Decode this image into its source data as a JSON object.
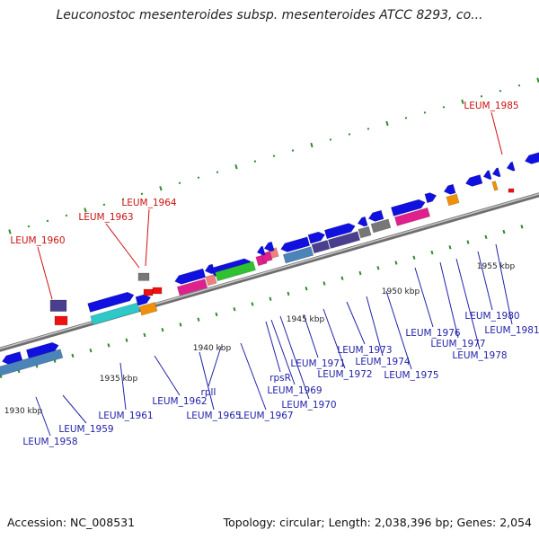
{
  "title": "Leuconostoc mesenteroides subsp. mesenteroides ATCC 8293, co...",
  "footer": {
    "accession": "Accession: NC_008531",
    "summary": "Topology: circular; Length: 2,038,396 bp; Genes: 2,054"
  },
  "scale_labels": [
    "1930 kbp",
    "1935 kbp",
    "1940 kbp",
    "1945 kbp",
    "1950 kbp",
    "1955 kbp"
  ],
  "colors": {
    "backbone": "#8a8a8a",
    "tick": "#2e8b2e",
    "blue_gene": "#1010e0",
    "steel_gene": "#4a84b8",
    "indigo_gene": "#4a3f8f",
    "gray_gene": "#777777",
    "cyan_gene": "#2ec8c8",
    "magenta_gene": "#e0208c",
    "salmon_gene": "#f08080",
    "green_gene": "#30c030",
    "orange_gene": "#f0900a",
    "red_gene": "#f01010",
    "blue_label": "#2222aa",
    "red_label": "#cc1111"
  },
  "gene_labels_top": [
    "LEUM_1960",
    "LEUM_1963",
    "LEUM_1964",
    "LEUM_1985"
  ],
  "gene_labels_bottom": [
    "LEUM_1958",
    "LEUM_1959",
    "LEUM_1961",
    "LEUM_1962",
    "LEUM_1965",
    "rplI",
    "LEUM_1967",
    "rpsR",
    "LEUM_1969",
    "LEUM_1970",
    "LEUM_1971",
    "LEUM_1972",
    "LEUM_1973",
    "LEUM_1974",
    "LEUM_1975",
    "LEUM_1976",
    "LEUM_1977",
    "LEUM_1978",
    "LEUM_1980",
    "LEUM_1981"
  ]
}
